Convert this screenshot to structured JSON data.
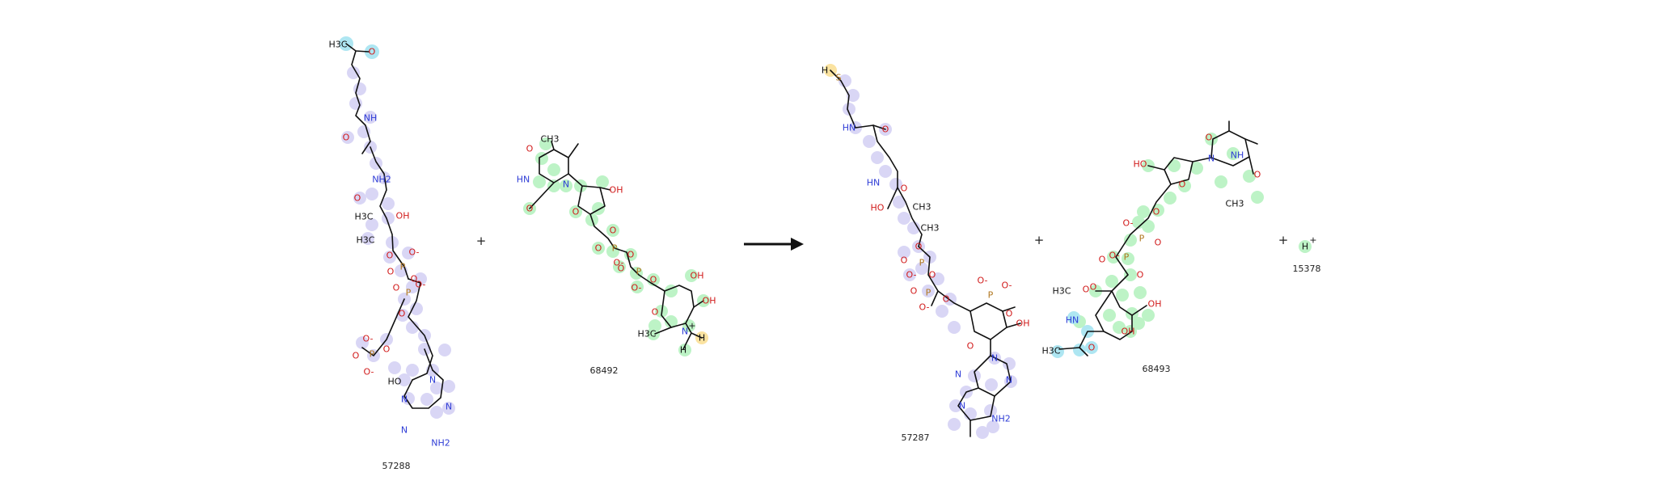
{
  "reaction": {
    "reactants": [
      {
        "id": "57288",
        "label": "57288"
      },
      {
        "id": "68492",
        "label": "68492"
      }
    ],
    "products": [
      {
        "id": "57287",
        "label": "57287"
      },
      {
        "id": "68493",
        "label": "68493"
      },
      {
        "id": "15378",
        "label": "15378"
      }
    ],
    "plus": "+"
  },
  "colors": {
    "highlight_lavender": "#d9d6f5",
    "highlight_green": "#bdf3c6",
    "highlight_cyan": "#aee6f2",
    "highlight_yellow": "#fbe3a1",
    "nitrogen": "#2f3dd6",
    "oxygen": "#d11b1b",
    "phosphorus": "#b0761d",
    "bond": "#111111"
  },
  "labels": {
    "m1": {
      "h3c": "H3C",
      "o_top": "O",
      "nh1": "NH",
      "o1": "O",
      "nh2": "NH2",
      "o2": "O",
      "oh": "OH",
      "h3c_a": "H3C",
      "h3c_b": "H3C",
      "o3": "O",
      "o_m1": "O-",
      "p1": "P",
      "o4": "O",
      "o5": "O",
      "o_m2": "O-",
      "p2": "P",
      "o6": "O",
      "o7": "O",
      "o_m3": "O-",
      "p3": "P",
      "o8": "O",
      "o9": "O",
      "o_m4": "O-",
      "ho": "HO",
      "n1": "N",
      "n2": "N",
      "n3": "N",
      "n4": "N"
    },
    "m2": {
      "ch3": "CH3",
      "o1": "O",
      "hn": "HN",
      "n": "N",
      "o2": "O",
      "oh": "OH",
      "o3": "O",
      "o4": "O",
      "o5": "O",
      "p1": "P",
      "o_m1": "O-",
      "o6": "O",
      "p2": "P",
      "o7": "O",
      "o_m2": "O-",
      "o8": "O",
      "oh2": "OH",
      "oh3": "OH",
      "o9": "O",
      "h3c": "H3C",
      "nh": "N",
      "plus": "+",
      "h1": "H",
      "h2": "H"
    },
    "m3": {
      "hs": "H",
      "s": "S",
      "hn": "HN",
      "o1": "O",
      "hn2": "HN",
      "o2": "O",
      "ho": "HO",
      "ch3a": "CH3",
      "ch3b": "CH3",
      "o3": "O",
      "o4": "O",
      "p1": "P",
      "o_m1": "O-",
      "o5": "O",
      "o6": "O",
      "p2": "P",
      "o_m2": "O-",
      "o7": "O",
      "o_m3": "O-",
      "o_m4": "O-",
      "p3": "P",
      "o8": "O",
      "oh": "OH",
      "o9": "O",
      "n1": "N",
      "n2": "N",
      "n3": "N",
      "n4": "N",
      "nh2": "NH2"
    },
    "m4": {
      "ho": "HO",
      "o1": "O",
      "n": "N",
      "nh": "NH",
      "o2": "O",
      "o3": "O",
      "ch3": "CH3",
      "o_m1": "O-",
      "o4": "O",
      "p1": "P",
      "o5": "O",
      "o_m2": "O-",
      "p2": "P",
      "o6": "O",
      "o7": "O",
      "o8": "O",
      "h3c": "H3C",
      "o9": "O",
      "oh": "OH",
      "hn": "HN",
      "oh2": "OH",
      "h3c2": "H3C",
      "o10": "O"
    },
    "m5": {
      "h": "H",
      "plus": "+"
    }
  }
}
